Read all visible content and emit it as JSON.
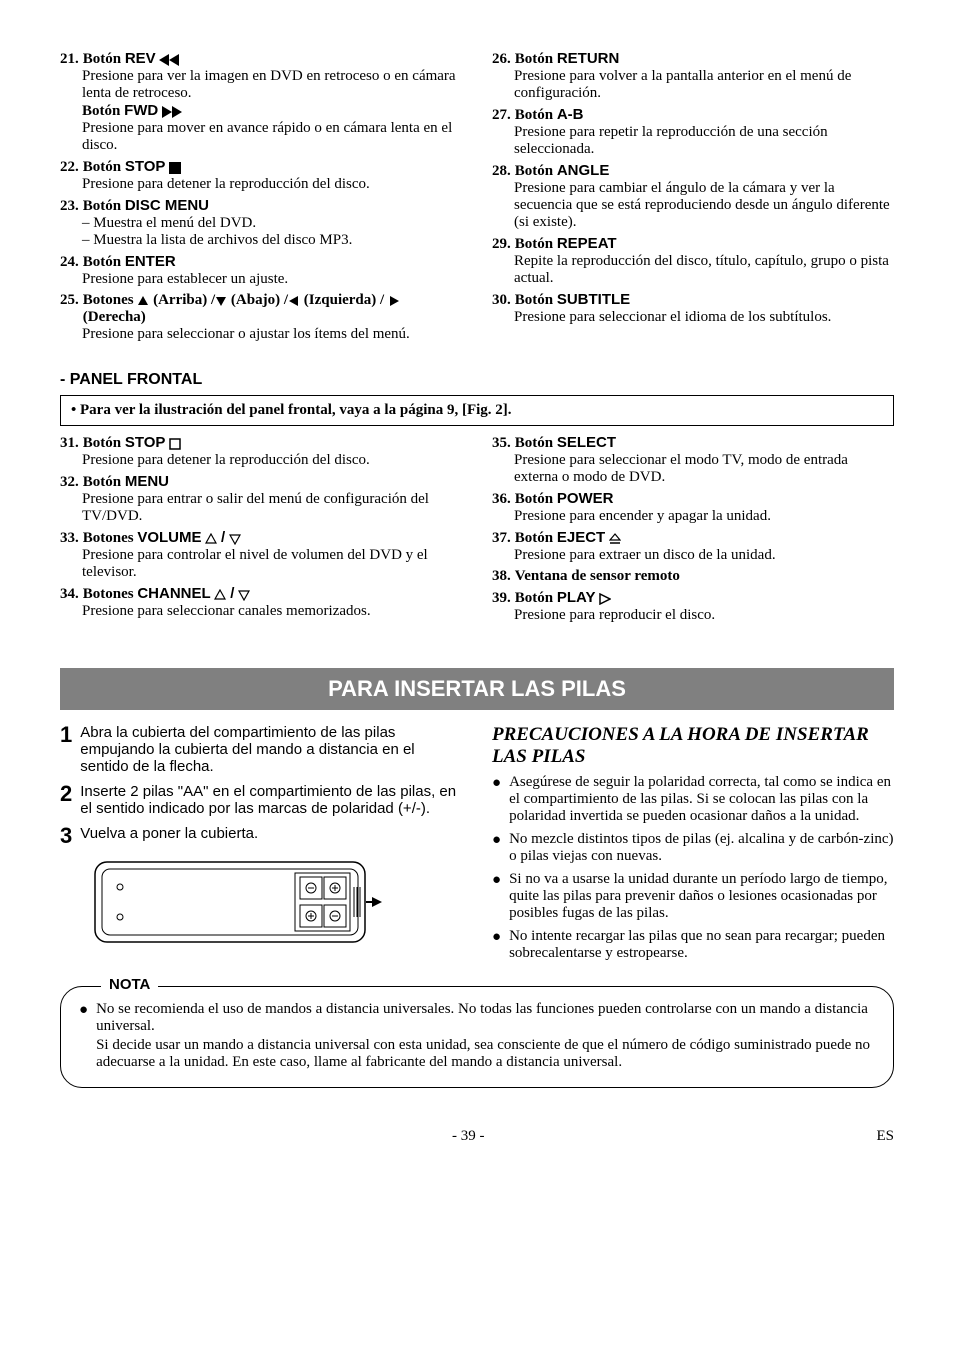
{
  "topLeft": [
    {
      "num": "21.",
      "label_pre": "Botón ",
      "label_sans": "REV",
      "icon": "rev",
      "descs": [
        "Presione para ver la imagen en DVD en retroceso o en cámara lenta de retroceso."
      ],
      "sub": {
        "label_pre": "Botón ",
        "label_sans": "FWD",
        "icon": "fwd",
        "desc": "Presione para mover en avance rápido o en cámara lenta en el disco."
      }
    },
    {
      "num": "22.",
      "label_pre": "Botón ",
      "label_sans": "STOP",
      "icon": "stop-solid",
      "descs": [
        "Presione para detener la reproducción del disco."
      ]
    },
    {
      "num": "23.",
      "label_pre": "Botón ",
      "label_sans": "DISC MENU",
      "descs": [
        "– Muestra el menú del DVD.",
        "– Muestra la lista de archivos del disco MP3."
      ]
    },
    {
      "num": "24.",
      "label_pre": "Botón ",
      "label_sans": "ENTER",
      "descs": [
        "Presione para establecer un ajuste."
      ]
    },
    {
      "num": "25.",
      "label_pre": "Botones ",
      "arrows": true,
      "descs": [
        "Presione para seleccionar o ajustar los ítems del menú."
      ]
    }
  ],
  "topRight": [
    {
      "num": "26.",
      "label_pre": "Botón ",
      "label_sans": "RETURN",
      "descs": [
        "Presione para volver a la pantalla anterior en el menú de configuración."
      ]
    },
    {
      "num": "27.",
      "label_pre": "Botón ",
      "label_sans": "A-B",
      "descs": [
        "Presione para repetir la reproducción de una sección seleccionada."
      ]
    },
    {
      "num": "28.",
      "label_pre": "Botón ",
      "label_sans": "ANGLE",
      "descs": [
        "Presione para cambiar el ángulo de la cámara y ver la secuencia que se está reproduciendo desde un ángulo diferente (si existe)."
      ]
    },
    {
      "num": "29.",
      "label_pre": "Botón ",
      "label_sans": "REPEAT",
      "descs": [
        "Repite la reproducción del disco, título, capítulo, grupo o pista actual."
      ]
    },
    {
      "num": "30.",
      "label_pre": "Botón ",
      "label_sans": "SUBTITLE",
      "descs": [
        "Presione para seleccionar el idioma de los subtítulos."
      ]
    }
  ],
  "arrowLabels": {
    "up": "(Arriba)",
    "down": "(Abajo)",
    "left": "(Izquierda)",
    "right": "(Derecha)"
  },
  "panelTitle": "- PANEL FRONTAL",
  "refBox": "• Para ver la ilustración del panel frontal, vaya a la página 9, [Fig. 2].",
  "midLeft": [
    {
      "num": "31.",
      "label_pre": "Botón ",
      "label_sans": "STOP",
      "icon": "stop-outline",
      "descs": [
        "Presione para detener la reproducción del disco."
      ]
    },
    {
      "num": "32.",
      "label_pre": "Botón ",
      "label_sans": "MENU",
      "descs": [
        "Presione para entrar o salir del menú de configuración del TV/DVD."
      ]
    },
    {
      "num": "33.",
      "label_pre": "Botones ",
      "label_sans": "VOLUME",
      "icon": "updown",
      "descs": [
        "Presione para controlar el nivel de volumen del DVD y el televisor."
      ]
    },
    {
      "num": "34.",
      "label_pre": "Botones ",
      "label_sans": "CHANNEL",
      "icon": "updown",
      "descs": [
        "Presione para seleccionar canales memorizados."
      ]
    }
  ],
  "midRight": [
    {
      "num": "35.",
      "label_pre": "Botón ",
      "label_sans": "SELECT",
      "descs": [
        "Presione para seleccionar el modo TV, modo de entrada externa o modo de DVD."
      ]
    },
    {
      "num": "36.",
      "label_pre": "Botón ",
      "label_sans": "POWER",
      "descs": [
        "Presione para encender y apagar la unidad."
      ]
    },
    {
      "num": "37.",
      "label_pre": "Botón ",
      "label_sans": "EJECT",
      "icon": "eject",
      "descs": [
        "Presione para extraer un disco de la unidad."
      ]
    },
    {
      "num": "38.",
      "label_pre": "",
      "label_sans": "Ventana de sensor remoto",
      "sansOnly": false,
      "boldSerif": true,
      "descs": []
    },
    {
      "num": "39.",
      "label_pre": "Botón ",
      "label_sans": "PLAY",
      "icon": "play-outline",
      "descs": [
        "Presione para reproducir el disco."
      ]
    }
  ],
  "banner": "PARA INSERTAR LAS PILAS",
  "steps": [
    {
      "n": "1",
      "t": "Abra la cubierta del compartimiento de las pilas empujando la cubierta del mando a distancia en el sentido de la flecha."
    },
    {
      "n": "2",
      "t": "Inserte 2 pilas \"AA\" en el compartimiento de las pilas, en el sentido indicado por las marcas de polaridad (+/-)."
    },
    {
      "n": "3",
      "t": "Vuelva a poner la cubierta."
    }
  ],
  "precautionTitle": "PRECAUCIONES A LA HORA DE INSERTAR LAS PILAS",
  "precautions": [
    "Asegúrese de seguir la polaridad correcta, tal como se indica en el compartimiento de las pilas. Si se colocan las pilas con la polaridad invertida se pueden ocasionar daños a la unidad.",
    "No mezcle distintos tipos de pilas (ej. alcalina y de carbón-zinc) o pilas viejas con nuevas.",
    "Si no va a usarse la unidad durante un período largo de tiempo, quite las pilas para prevenir daños o lesiones ocasionadas por posibles fugas de las pilas.",
    "No intente recargar las pilas que no sean para recargar; pueden sobrecalentarse y estropearse."
  ],
  "notaLabel": "NOTA",
  "nota": [
    "No se recomienda el uso de mandos a distancia universales. No todas las funciones pueden controlarse con un mando a distancia universal.",
    "Si decide usar un mando a distancia universal con esta unidad, sea consciente de que el número de código suministrado puede no adecuarse a la unidad. En este caso, llame al fabricante del mando a distancia universal."
  ],
  "pageNum": "- 39 -",
  "langCode": "ES"
}
